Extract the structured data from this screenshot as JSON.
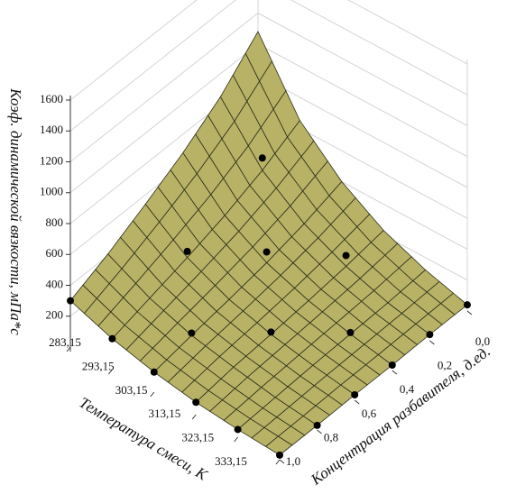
{
  "chart_data": {
    "type": "surface3d",
    "xlabel": "Температура смеси, К",
    "ylabel": "Концентрация разбавителя, д.ед.",
    "zlabel": "Коэф. динамической вязкости, мПа*с",
    "xlim": [
      283.15,
      333.15
    ],
    "xticks": [
      {
        "value": 283.15,
        "label": "283,15"
      },
      {
        "value": 293.15,
        "label": "293,15"
      },
      {
        "value": 303.15,
        "label": "303,15"
      },
      {
        "value": 313.15,
        "label": "313,15"
      },
      {
        "value": 323.15,
        "label": "323,15"
      },
      {
        "value": 333.15,
        "label": "333,15"
      }
    ],
    "ylim": [
      0,
      1
    ],
    "yticks": [
      {
        "value": 0,
        "label": "0,0"
      },
      {
        "value": 0.2,
        "label": "0,2"
      },
      {
        "value": 0.4,
        "label": "0,4"
      },
      {
        "value": 0.6,
        "label": "0,6"
      },
      {
        "value": 0.8,
        "label": "0,8"
      },
      {
        "value": 1,
        "label": "1,0"
      }
    ],
    "zlim": [
      0,
      1600
    ],
    "zticks": [
      200,
      400,
      600,
      800,
      1000,
      1200,
      1400,
      1600
    ],
    "surface": {
      "color": "#b7b265",
      "edge_color": "#2e2e1a",
      "x": [
        283.15,
        293.15,
        303.15,
        313.15,
        323.15,
        333.15
      ],
      "y": [
        0,
        0.2,
        0.4,
        0.6,
        0.8,
        1
      ],
      "z": [
        [
          1080,
          650,
          400,
          230,
          120,
          40
        ],
        [
          850,
          520,
          320,
          190,
          100,
          40
        ],
        [
          680,
          420,
          260,
          160,
          90,
          35
        ],
        [
          540,
          340,
          215,
          135,
          80,
          35
        ],
        [
          410,
          270,
          175,
          115,
          65,
          30
        ],
        [
          300,
          200,
          130,
          80,
          50,
          30
        ]
      ]
    },
    "points": {
      "color": "#000000",
      "x": [
        283.15,
        293.15,
        303.15,
        313.15,
        323.15,
        333.15,
        333.15,
        333.15,
        333.15,
        333.15,
        333.15,
        293.15,
        303.15,
        303.15,
        313.15,
        313.15,
        323.15,
        293.15
      ],
      "y": [
        1,
        1,
        1,
        1,
        1,
        1,
        0,
        0.2,
        0.4,
        0.6,
        0.8,
        0.2,
        0.4,
        0.8,
        0.2,
        0.6,
        0.4,
        0.6
      ],
      "z": [
        300,
        200,
        130,
        80,
        50,
        30,
        40,
        40,
        35,
        35,
        30,
        600,
        330,
        190,
        260,
        150,
        100,
        380
      ]
    }
  }
}
